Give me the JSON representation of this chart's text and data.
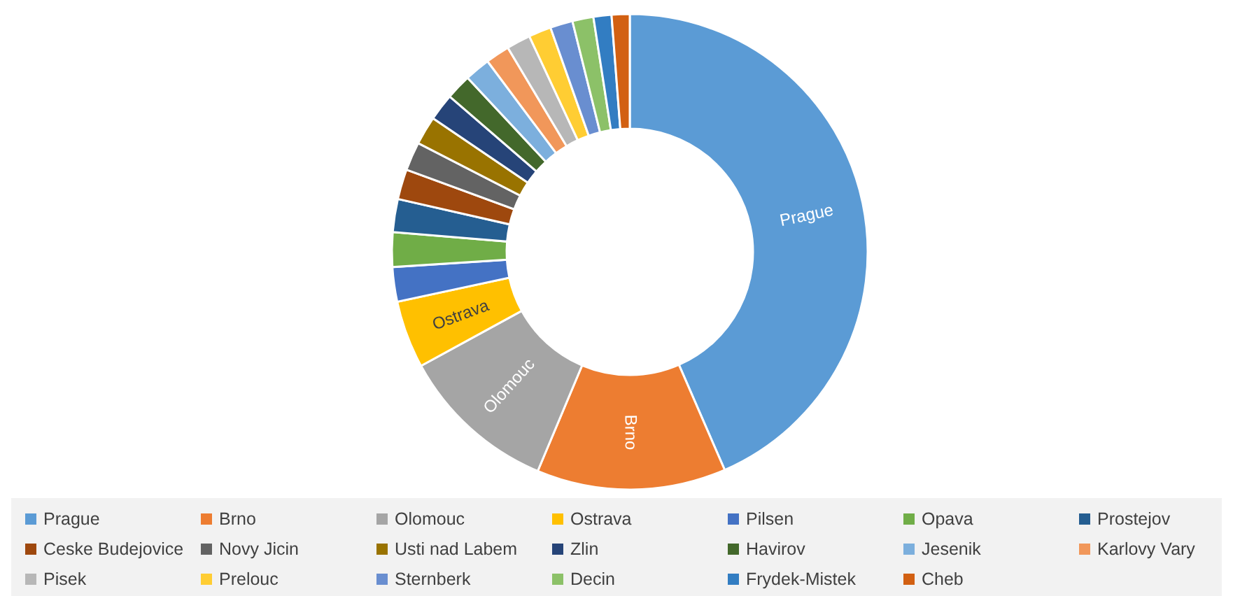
{
  "chart_data": {
    "type": "donut",
    "categories": [
      "Prague",
      "Brno",
      "Olomouc",
      "Ostrava",
      "Pilsen",
      "Opava",
      "Prostejov",
      "Ceske Budejovice",
      "Novy Jicin",
      "Usti nad Labem",
      "Zlin",
      "Havirov",
      "Jesenik",
      "Karlovy Vary",
      "Pisek",
      "Prelouc",
      "Sternberk",
      "Decin",
      "Frydek-Mistek",
      "Cheb"
    ],
    "values": [
      42.6,
      12.6,
      10.5,
      4.5,
      2.3,
      2.3,
      2.2,
      2.0,
      1.9,
      1.9,
      1.8,
      1.7,
      1.7,
      1.6,
      1.6,
      1.5,
      1.5,
      1.4,
      1.2,
      1.2
    ],
    "colors": [
      "#5b9bd5",
      "#ed7d31",
      "#a5a5a5",
      "#ffc000",
      "#4472c4",
      "#70ad47",
      "#255e91",
      "#9e480e",
      "#636363",
      "#997300",
      "#264478",
      "#43682b",
      "#7cafdd",
      "#f1975a",
      "#b7b7b7",
      "#ffcd33",
      "#698ed0",
      "#8cc168",
      "#327dc2",
      "#d26012"
    ],
    "value_labels": [
      "Prague",
      "Brno",
      "Olomouc",
      "Ostrava",
      null,
      null,
      null,
      null,
      null,
      null,
      null,
      null,
      null,
      null,
      null,
      null,
      null,
      null,
      null,
      null
    ],
    "legend": "bottom"
  }
}
